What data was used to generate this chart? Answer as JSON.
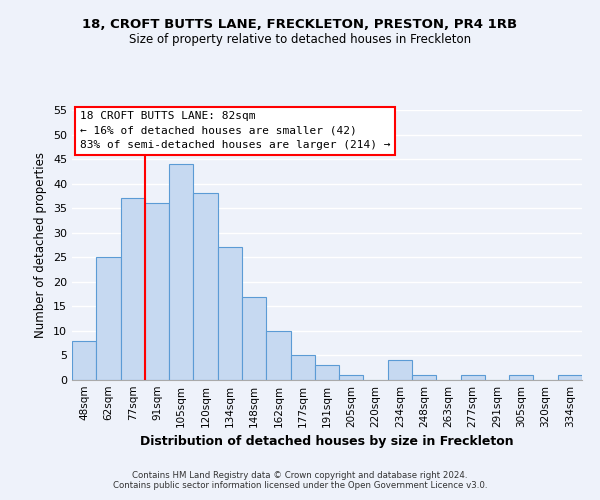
{
  "title": "18, CROFT BUTTS LANE, FRECKLETON, PRESTON, PR4 1RB",
  "subtitle": "Size of property relative to detached houses in Freckleton",
  "xlabel": "Distribution of detached houses by size in Freckleton",
  "ylabel": "Number of detached properties",
  "bar_labels": [
    "48sqm",
    "62sqm",
    "77sqm",
    "91sqm",
    "105sqm",
    "120sqm",
    "134sqm",
    "148sqm",
    "162sqm",
    "177sqm",
    "191sqm",
    "205sqm",
    "220sqm",
    "234sqm",
    "248sqm",
    "263sqm",
    "277sqm",
    "291sqm",
    "305sqm",
    "320sqm",
    "334sqm"
  ],
  "bar_heights": [
    8,
    25,
    37,
    36,
    44,
    38,
    27,
    17,
    10,
    5,
    3,
    1,
    0,
    4,
    1,
    0,
    1,
    0,
    1,
    0,
    1
  ],
  "bar_color": "#c6d9f1",
  "bar_edge_color": "#5b9bd5",
  "vline_x_index": 2,
  "vline_color": "red",
  "annotation_title": "18 CROFT BUTTS LANE: 82sqm",
  "annotation_line1": "← 16% of detached houses are smaller (42)",
  "annotation_line2": "83% of semi-detached houses are larger (214) →",
  "annotation_box_color": "white",
  "annotation_box_edge": "red",
  "ylim": [
    0,
    55
  ],
  "yticks": [
    0,
    5,
    10,
    15,
    20,
    25,
    30,
    35,
    40,
    45,
    50,
    55
  ],
  "footer1": "Contains HM Land Registry data © Crown copyright and database right 2024.",
  "footer2": "Contains public sector information licensed under the Open Government Licence v3.0.",
  "background_color": "#eef2fa"
}
